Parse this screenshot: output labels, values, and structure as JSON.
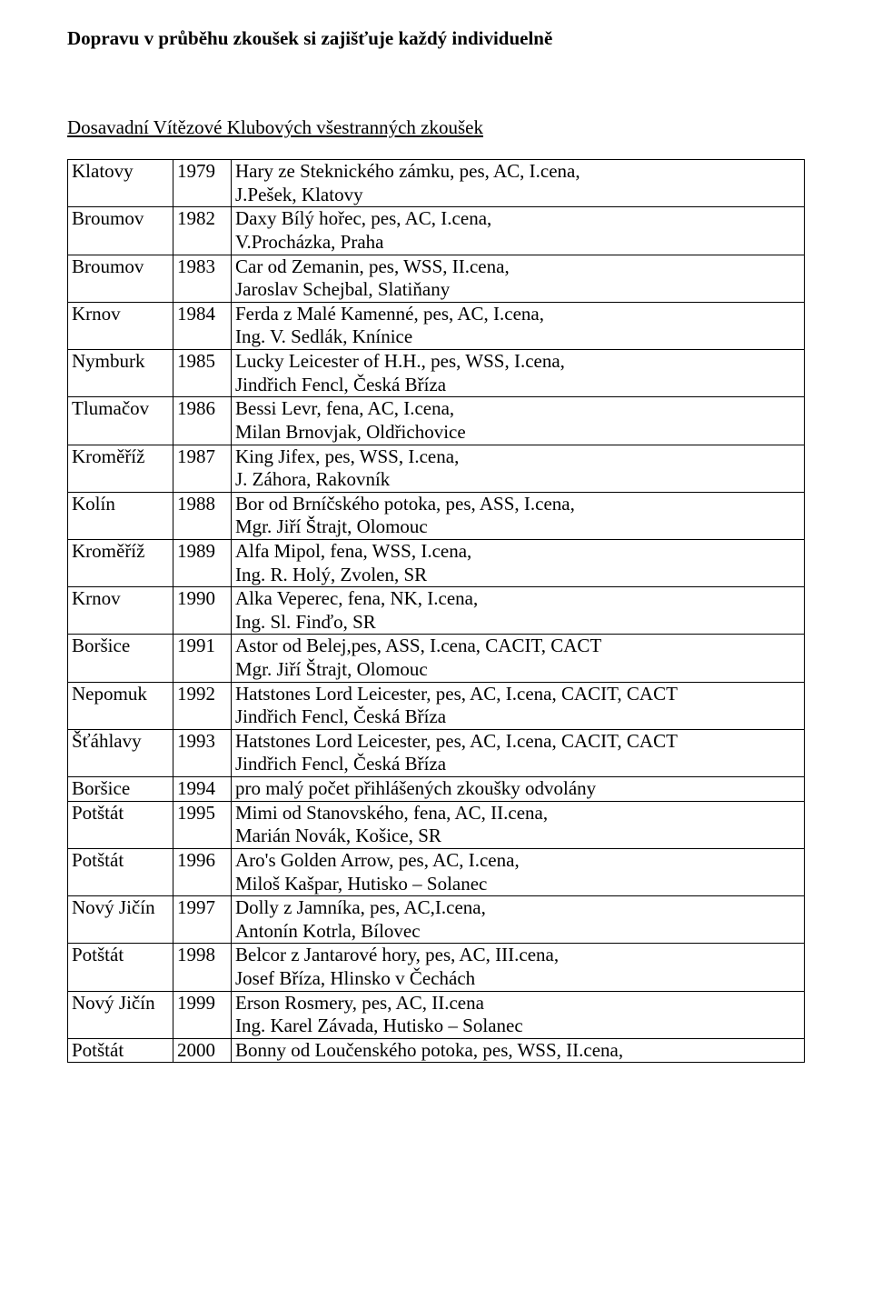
{
  "heading": "Dopravu v průběhu zkoušek si zajišťuje každý individuelně",
  "subheading": "Dosavadní Vítězové Klubových všestranných zkoušek",
  "rows": [
    {
      "place": "Klatovy",
      "year": "1979",
      "l1": "Hary ze Steknického zámku, pes, AC, I.cena,",
      "l2": "J.Pešek, Klatovy"
    },
    {
      "place": "Broumov",
      "year": "1982",
      "l1": "Daxy Bílý hořec, pes, AC, I.cena,",
      "l2": "V.Procházka, Praha"
    },
    {
      "place": "Broumov",
      "year": "1983",
      "l1": "Car od Zemanin, pes, WSS, II.cena,",
      "l2": "Jaroslav Schejbal, Slatiňany"
    },
    {
      "place": "Krnov",
      "year": "1984",
      "l1": "Ferda z Malé Kamenné, pes, AC, I.cena,",
      "l2": "Ing. V. Sedlák, Knínice"
    },
    {
      "place": "Nymburk",
      "year": "1985",
      "l1": "Lucky Leicester of H.H., pes, WSS, I.cena,",
      "l2": "Jindřich Fencl, Česká Bříza"
    },
    {
      "place": "Tlumačov",
      "year": "1986",
      "l1": "Bessi Levr, fena, AC, I.cena,",
      "l2": "Milan Brnovjak, Oldřichovice"
    },
    {
      "place": "Kroměříž",
      "year": "1987",
      "l1": "King Jifex, pes, WSS, I.cena,",
      "l2": "J. Záhora, Rakovník"
    },
    {
      "place": "Kolín",
      "year": "1988",
      "l1": "Bor od Brníčského potoka, pes, ASS, I.cena,",
      "l2": "Mgr. Jiří Štrajt, Olomouc"
    },
    {
      "place": "Kroměříž",
      "year": "1989",
      "l1": "Alfa Mipol, fena, WSS, I.cena,",
      "l2": "Ing. R. Holý, Zvolen, SR"
    },
    {
      "place": "Krnov",
      "year": "1990",
      "l1": "Alka Veperec, fena, NK, I.cena,",
      "l2": "Ing. Sl. Finďo, SR"
    },
    {
      "place": "Boršice",
      "year": "1991",
      "l1": "Astor od Belej,pes, ASS, I.cena, CACIT, CACT",
      "l2": "Mgr. Jiří Štrajt, Olomouc"
    },
    {
      "place": "Nepomuk",
      "year": "1992",
      "l1": "Hatstones Lord Leicester, pes, AC, I.cena, CACIT, CACT",
      "l2": "Jindřich Fencl, Česká Bříza"
    },
    {
      "place": "Šťáhlavy",
      "year": "1993",
      "l1": "Hatstones Lord Leicester, pes, AC, I.cena, CACIT, CACT",
      "l2": "Jindřich Fencl, Česká Bříza"
    },
    {
      "place": "Boršice",
      "year": "1994",
      "l1": "pro malý počet přihlášených zkoušky odvolány",
      "l2": ""
    },
    {
      "place": "Potštát",
      "year": "1995",
      "l1": "Mimi od Stanovského, fena, AC, II.cena,",
      "l2": "Marián Novák, Košice, SR"
    },
    {
      "place": "Potštát",
      "year": "1996",
      "l1": "Aro's Golden Arrow, pes, AC, I.cena,",
      "l2": "Miloš Kašpar, Hutisko – Solanec"
    },
    {
      "place": "Nový Jičín",
      "year": "1997",
      "l1": "Dolly z Jamníka, pes, AC,I.cena,",
      "l2": "Antonín Kotrla, Bílovec"
    },
    {
      "place": "Potštát",
      "year": "1998",
      "l1": "Belcor z Jantarové hory, pes, AC, III.cena,",
      "l2": "Josef Bříza, Hlinsko v Čechách"
    },
    {
      "place": "Nový Jičín",
      "year": "1999",
      "l1": "Erson Rosmery, pes, AC, II.cena",
      "l2": "Ing. Karel Závada, Hutisko – Solanec"
    },
    {
      "place": "Potštát",
      "year": "2000",
      "l1": "Bonny od Loučenského potoka, pes, WSS, II.cena,",
      "l2": ""
    }
  ]
}
